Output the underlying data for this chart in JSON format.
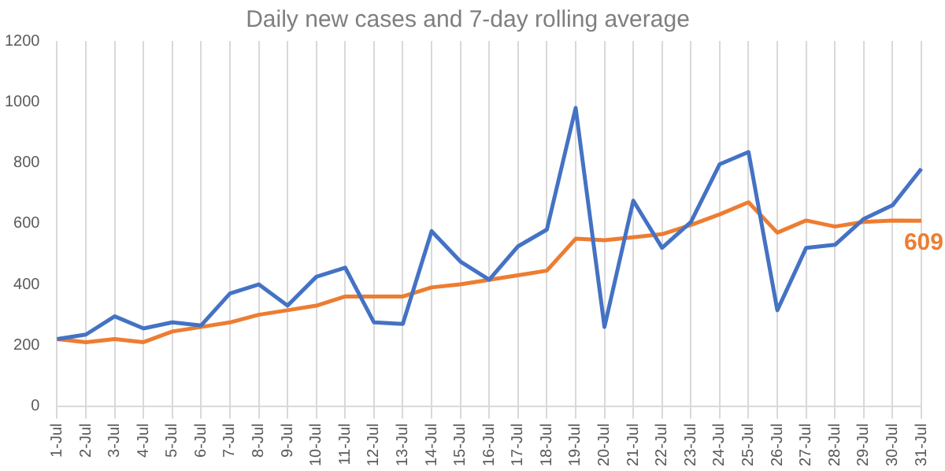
{
  "chart_data": {
    "type": "line",
    "title": "Daily new cases and 7-day rolling average",
    "categories": [
      "1-Jul",
      "2-Jul",
      "3-Jul",
      "4-Jul",
      "5-Jul",
      "6-Jul",
      "7-Jul",
      "8-Jul",
      "9-Jul",
      "10-Jul",
      "11-Jul",
      "12-Jul",
      "13-Jul",
      "14-Jul",
      "15-Jul",
      "16-Jul",
      "17-Jul",
      "18-Jul",
      "19-Jul",
      "20-Jul",
      "21-Jul",
      "22-Jul",
      "23-Jul",
      "24-Jul",
      "25-Jul",
      "26-Jul",
      "27-Jul",
      "28-Jul",
      "29-Jul",
      "30-Jul",
      "31-Jul"
    ],
    "series": [
      {
        "color": "#4472c4",
        "values": [
          220,
          235,
          295,
          255,
          275,
          265,
          370,
          400,
          330,
          425,
          455,
          275,
          270,
          575,
          475,
          415,
          525,
          580,
          980,
          260,
          675,
          520,
          605,
          795,
          835,
          315,
          520,
          530,
          615,
          660,
          780
        ]
      },
      {
        "color": "#ed7d31",
        "values": [
          220,
          210,
          220,
          210,
          245,
          260,
          275,
          300,
          315,
          330,
          360,
          360,
          360,
          390,
          400,
          415,
          430,
          445,
          550,
          545,
          555,
          565,
          595,
          630,
          670,
          570,
          610,
          590,
          605,
          610,
          609
        ]
      }
    ],
    "ylim": [
      0,
      1200
    ],
    "yticks": [
      0,
      200,
      400,
      600,
      800,
      1000,
      1200
    ],
    "grid": "x",
    "legend": false,
    "marker": "none",
    "line_style": "solid",
    "annotations": [
      {
        "text": "609",
        "x": "31-Jul",
        "y": 609
      }
    ]
  }
}
